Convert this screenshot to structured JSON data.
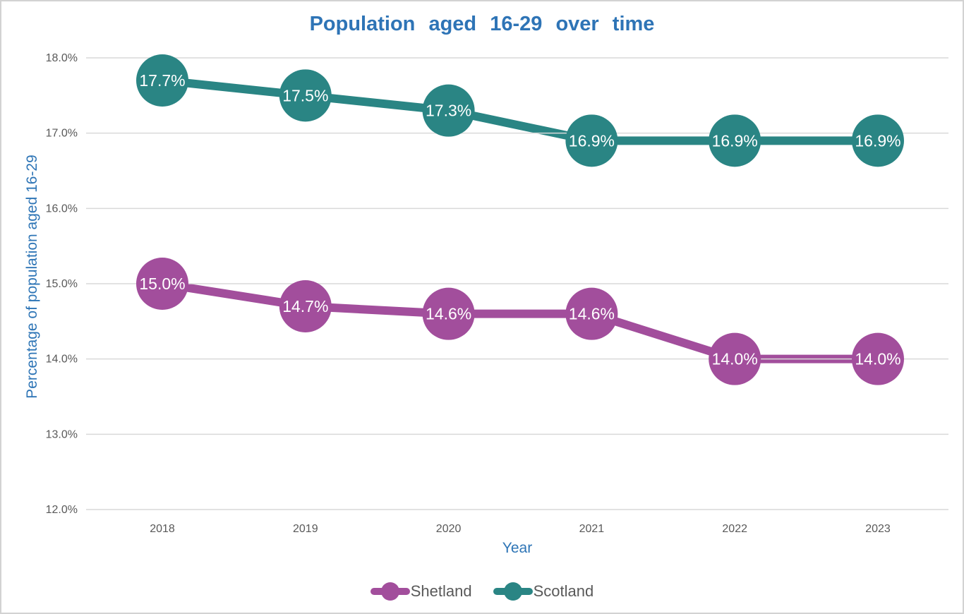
{
  "title": "Population aged 16-29 over time",
  "axes": {
    "x_title": "Year",
    "y_title": "Percentage of population aged 16-29"
  },
  "chart_data": {
    "type": "line",
    "title": "Population aged 16-29 over time",
    "xlabel": "Year",
    "ylabel": "Percentage of population aged 16-29",
    "categories": [
      "2018",
      "2019",
      "2020",
      "2021",
      "2022",
      "2023"
    ],
    "series": [
      {
        "name": "Shetland",
        "color": "#A24E9C",
        "values": [
          15.0,
          14.7,
          14.6,
          14.6,
          14.0,
          14.0
        ],
        "labels": [
          "15.0%",
          "14.7%",
          "14.6%",
          "14.6%",
          "14.0%",
          "14.0%"
        ]
      },
      {
        "name": "Scotland",
        "color": "#2A8584",
        "values": [
          17.7,
          17.5,
          17.3,
          16.9,
          16.9,
          16.9
        ],
        "labels": [
          "17.7%",
          "17.5%",
          "17.3%",
          "16.9%",
          "16.9%",
          "16.9%"
        ]
      }
    ],
    "ylim": [
      12,
      18
    ],
    "y_ticks": [
      12,
      13,
      14,
      15,
      16,
      17,
      18
    ],
    "y_tick_labels": [
      "12.0%",
      "13.0%",
      "14.0%",
      "15.0%",
      "16.0%",
      "17.0%",
      "18.0%"
    ],
    "grid": "horizontal",
    "legend_position": "bottom",
    "data_label_color": "#FFFFFF"
  },
  "legend": {
    "items": [
      {
        "label": "Shetland",
        "color": "#A24E9C"
      },
      {
        "label": "Scotland",
        "color": "#2A8584"
      }
    ]
  },
  "colors": {
    "title": "#2E74B6",
    "axis_titles": "#2E75B6",
    "tick_labels": "#595959",
    "gridlines": "#D9D9D9",
    "legend_text": "#595959",
    "data_label_text": "#FFFFFF",
    "background": "#FFFFFF",
    "page_border": "#D2D2D2"
  }
}
